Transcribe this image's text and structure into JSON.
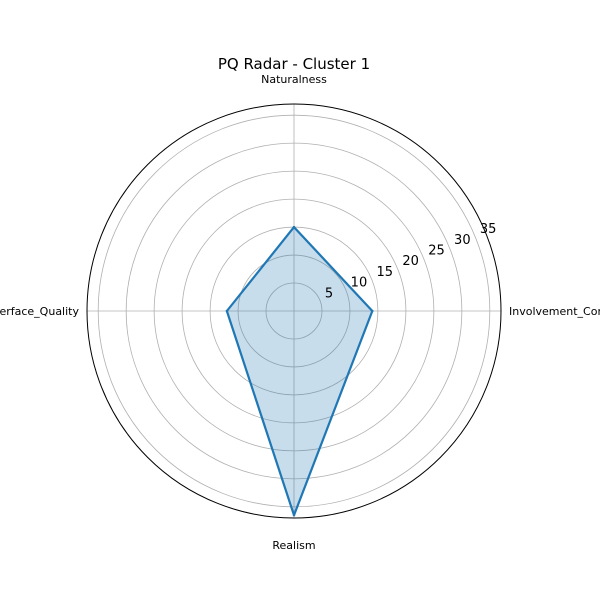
{
  "chart_data": {
    "type": "radar",
    "title": "PQ Radar - Cluster 1",
    "categories": [
      "Naturalness",
      "Involvement_Control",
      "Realism",
      "Interface_Quality"
    ],
    "series": [
      {
        "values": [
          15.0,
          14.0,
          36.5,
          12.0
        ]
      }
    ],
    "rlim": [
      0,
      37
    ],
    "r_ticks": [
      5,
      10,
      15,
      20,
      25,
      30,
      35
    ],
    "grid": true,
    "colors": {
      "line": "#1f77b4",
      "fill": "#1f77b4",
      "grid": "#b0b0b0",
      "frame": "#000000"
    }
  }
}
